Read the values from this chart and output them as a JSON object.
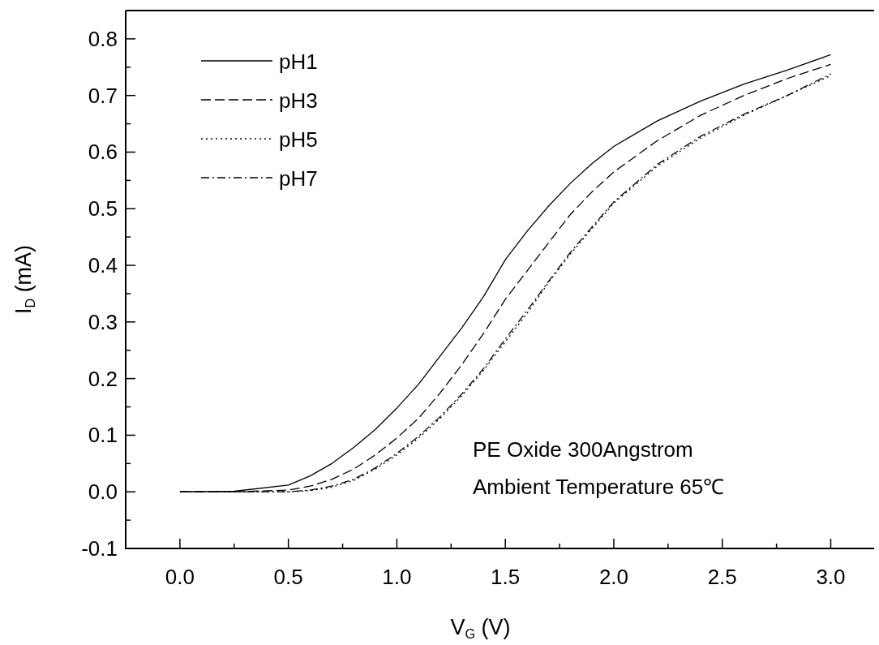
{
  "chart_data": {
    "type": "line",
    "xlabel": "V$_{G}$ (V)",
    "ylabel": "I$_{D}$ (mA)",
    "x": [
      0,
      0.25,
      0.5,
      0.6,
      0.7,
      0.8,
      0.9,
      1.0,
      1.1,
      1.2,
      1.3,
      1.4,
      1.5,
      1.6,
      1.7,
      1.8,
      1.9,
      2.0,
      2.2,
      2.4,
      2.6,
      2.8,
      3.0
    ],
    "series": [
      {
        "name": "pH1",
        "color": "#000000",
        "line_style": "solid",
        "values": [
          0,
          0.001,
          0.012,
          0.028,
          0.05,
          0.078,
          0.11,
          0.148,
          0.19,
          0.24,
          0.29,
          0.345,
          0.41,
          0.46,
          0.505,
          0.545,
          0.58,
          0.61,
          0.655,
          0.69,
          0.72,
          0.745,
          0.772
        ]
      },
      {
        "name": "pH3",
        "color": "#000000",
        "line_style": "dashed",
        "values": [
          0,
          0,
          0.003,
          0.01,
          0.022,
          0.04,
          0.065,
          0.095,
          0.13,
          0.175,
          0.225,
          0.28,
          0.34,
          0.39,
          0.44,
          0.49,
          0.53,
          0.565,
          0.62,
          0.665,
          0.7,
          0.73,
          0.755
        ]
      },
      {
        "name": "pH5",
        "color": "#000000",
        "line_style": "dotted",
        "values": [
          0,
          0,
          0,
          0.002,
          0.008,
          0.02,
          0.04,
          0.065,
          0.095,
          0.13,
          0.17,
          0.215,
          0.265,
          0.315,
          0.37,
          0.42,
          0.465,
          0.51,
          0.575,
          0.625,
          0.665,
          0.7,
          0.735
        ]
      },
      {
        "name": "pH7",
        "color": "#000000",
        "line_style": "dashdot",
        "values": [
          0,
          0,
          0,
          0.003,
          0.01,
          0.022,
          0.042,
          0.068,
          0.098,
          0.133,
          0.173,
          0.218,
          0.27,
          0.32,
          0.372,
          0.423,
          0.468,
          0.512,
          0.578,
          0.628,
          0.667,
          0.7,
          0.738
        ]
      }
    ],
    "xlim": [
      -0.25,
      3.2
    ],
    "ylim": [
      -0.1,
      0.85
    ],
    "xticks": [
      {
        "value": 0,
        "label": "0.0"
      },
      {
        "value": 0.25,
        "label": null
      },
      0.5,
      {
        "value": 0.75,
        "label": null
      },
      {
        "value": 1,
        "label": "1.0"
      },
      {
        "value": 1.25,
        "label": null
      },
      1.5,
      {
        "value": 1.75,
        "label": null
      },
      {
        "value": 2,
        "label": "2.0"
      },
      {
        "value": 2.25,
        "label": null
      },
      2.5,
      {
        "value": 2.75,
        "label": null
      },
      {
        "value": 3,
        "label": "3.0"
      }
    ],
    "yticks": [
      -0.1,
      {
        "value": -0.05,
        "label": null
      },
      {
        "value": 0,
        "label": "0.0"
      },
      {
        "value": 0.05,
        "label": null
      },
      0.1,
      {
        "value": 0.15,
        "label": null
      },
      0.2,
      {
        "value": 0.25,
        "label": null
      },
      0.3,
      {
        "value": 0.35,
        "label": null
      },
      0.4,
      {
        "value": 0.45,
        "label": null
      },
      0.5,
      {
        "value": 0.55,
        "label": null
      },
      0.6,
      {
        "value": 0.65,
        "label": null
      },
      0.7,
      {
        "value": 0.75,
        "label": null
      },
      0.8
    ],
    "legend": "top left",
    "grid": false,
    "marker": "none",
    "annotations": [
      "PE Oxide 300Angstrom",
      "Ambient Temperature 65℃"
    ]
  }
}
